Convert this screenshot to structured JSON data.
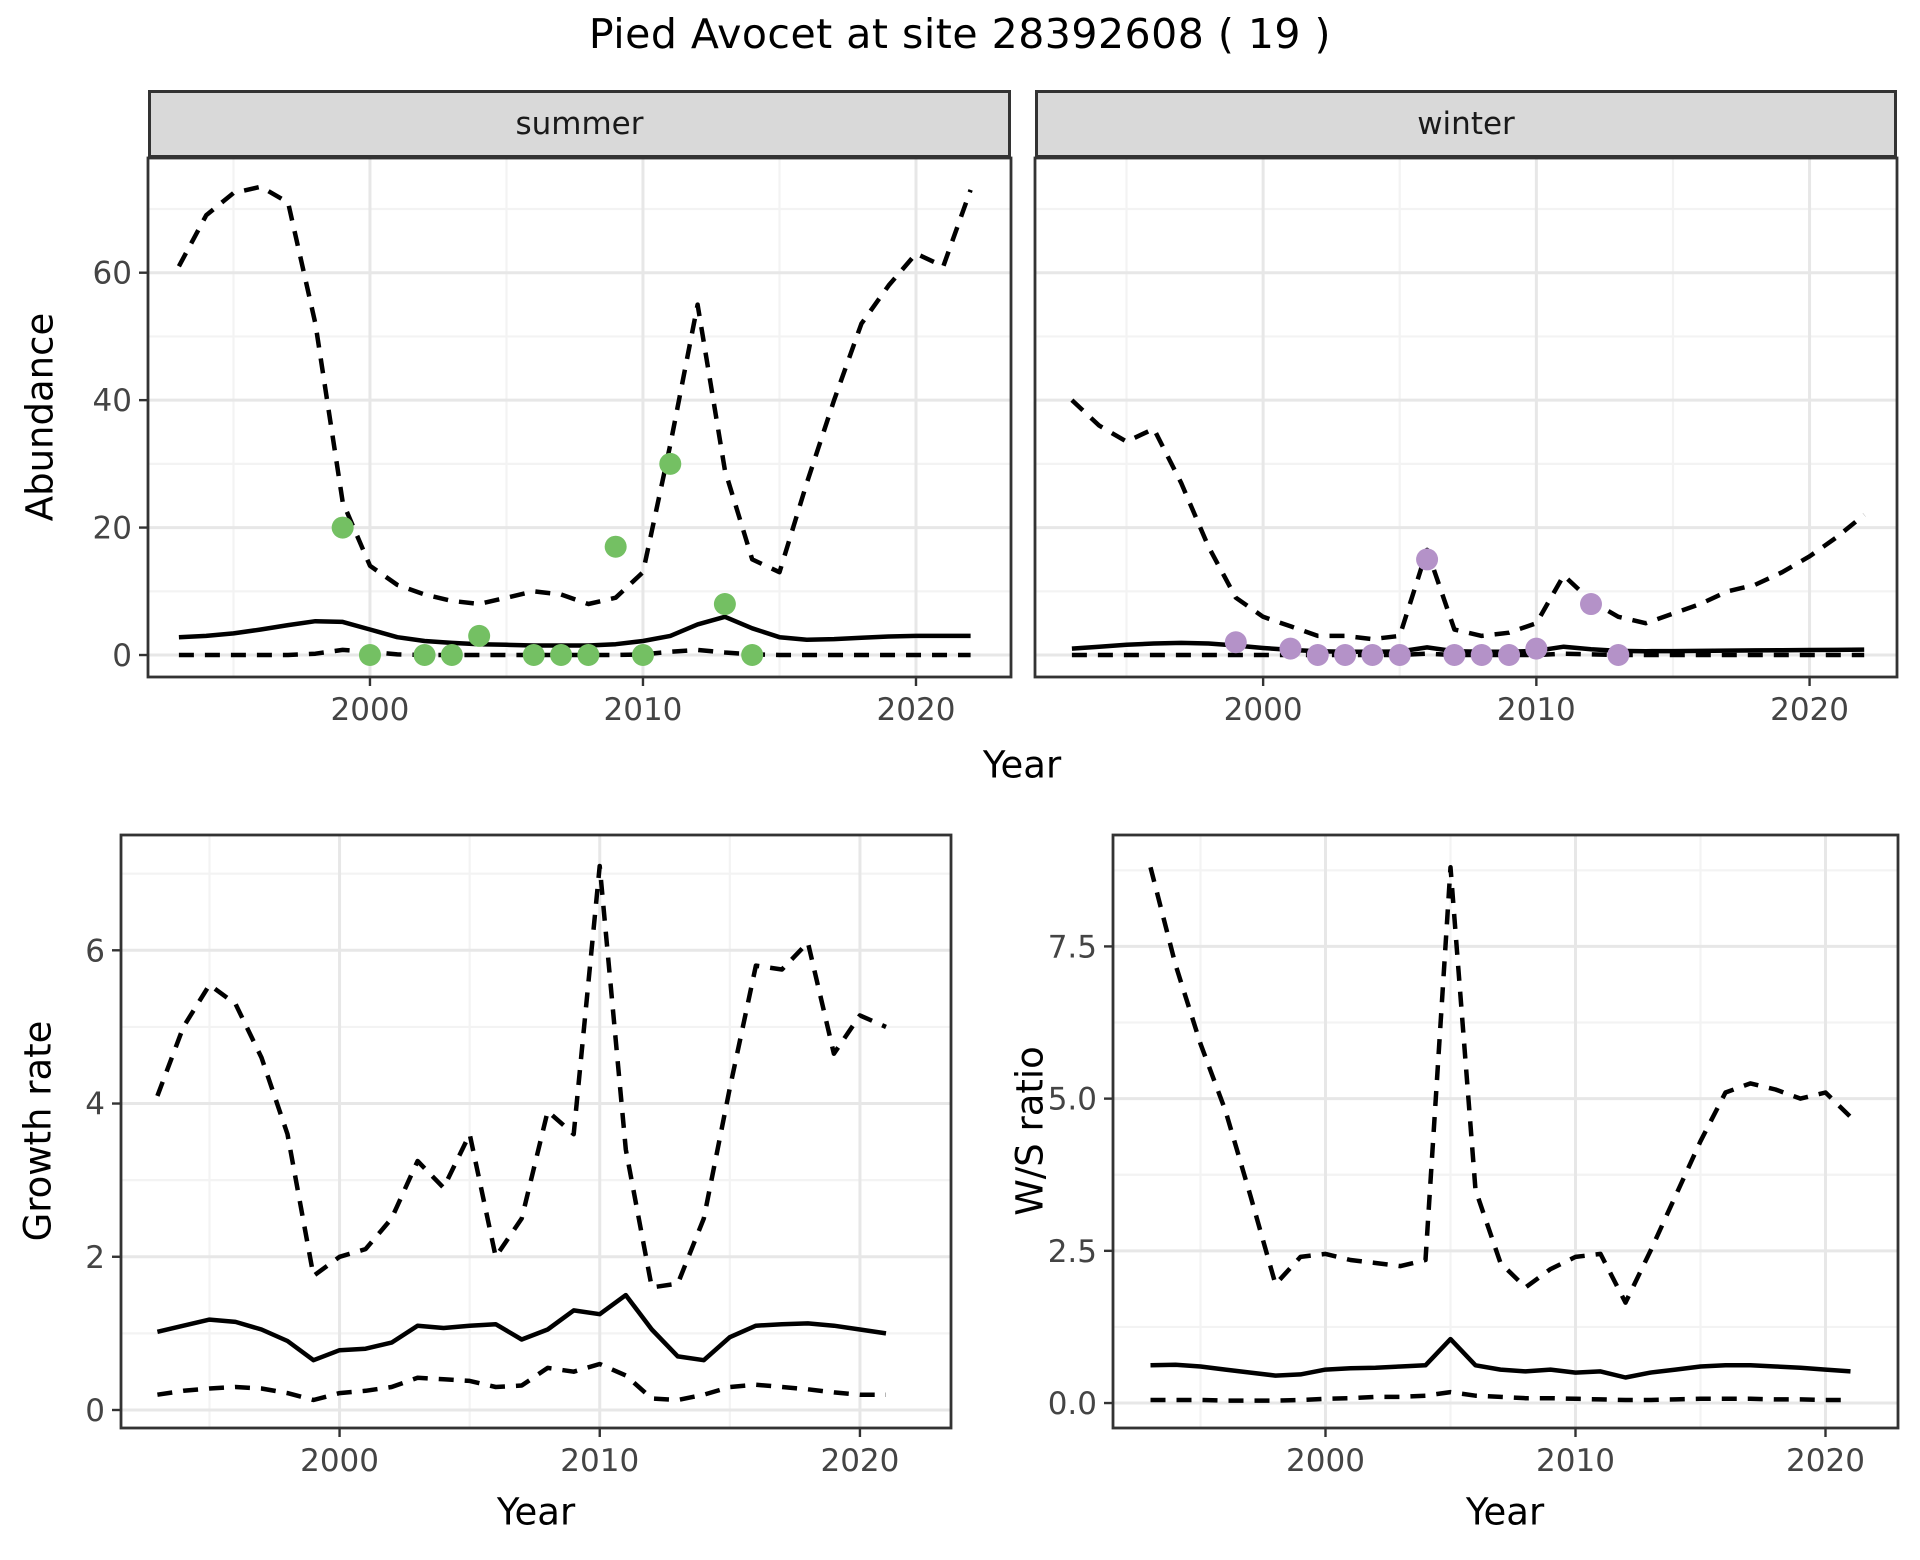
{
  "title": "Pied Avocet at site 28392608 ( 19 )",
  "axes": {
    "year": "Year",
    "abundance": "Abundance",
    "growth": "Growth rate",
    "ws": "W/S ratio"
  },
  "colors": {
    "fit_line": "#000000",
    "ci_line": "#000000",
    "summer_point": "#74c063",
    "winter_point": "#b492c8",
    "strip_bg": "#d9d9d9",
    "panel_border": "#333333",
    "grid_major": "#e7e7e7",
    "grid_minor": "#f3f3f3",
    "tick_text": "#444444",
    "tick_mark": "#333333"
  },
  "chart_data": [
    {
      "id": "abundance_summer",
      "type": "line",
      "facet_label": "summer",
      "title": "summer",
      "xlabel": "Year",
      "ylabel": "Abundance",
      "xlim": [
        1991.87,
        2023.48
      ],
      "ylim": [
        -3.45,
        78.0
      ],
      "x_ticks": [
        2000,
        2010,
        2020
      ],
      "x_tick_labels": [
        "2000",
        "2010",
        "2020"
      ],
      "x_minor": [
        1995,
        2005,
        2015
      ],
      "y_ticks": [
        0,
        20,
        40,
        60
      ],
      "y_tick_labels": [
        "0",
        "20",
        "40",
        "60"
      ],
      "y_minor": [
        10,
        30,
        50,
        70
      ],
      "show_y_axis": true,
      "x": [
        1993,
        1994,
        1995,
        1996,
        1997,
        1998,
        1999,
        2000,
        2001,
        2002,
        2003,
        2004,
        2005,
        2006,
        2007,
        2008,
        2009,
        2010,
        2011,
        2012,
        2013,
        2014,
        2015,
        2016,
        2017,
        2018,
        2019,
        2020,
        2021,
        2022
      ],
      "series": [
        {
          "name": "upper_ci",
          "style": "dashed",
          "values": [
            61,
            69,
            72.5,
            73.5,
            71,
            52,
            24,
            14,
            11,
            9.5,
            8.5,
            8,
            9,
            10,
            9.5,
            8,
            9,
            13,
            33,
            55,
            29,
            15,
            13,
            27,
            40,
            52,
            58,
            63,
            61,
            73
          ]
        },
        {
          "name": "fit",
          "style": "solid",
          "values": [
            2.8,
            3.0,
            3.4,
            4.0,
            4.7,
            5.3,
            5.2,
            4.0,
            2.8,
            2.2,
            1.9,
            1.7,
            1.6,
            1.5,
            1.5,
            1.5,
            1.7,
            2.2,
            3.0,
            4.8,
            6.0,
            4.2,
            2.8,
            2.4,
            2.5,
            2.7,
            2.9,
            3.0,
            3.0,
            3.0
          ]
        },
        {
          "name": "lower_ci",
          "style": "dashed",
          "values": [
            0,
            0,
            0,
            0,
            0,
            0.2,
            0.8,
            0.5,
            0.1,
            0,
            0,
            0,
            0,
            0,
            0,
            0,
            0,
            0.1,
            0.5,
            0.8,
            0.4,
            0.1,
            0,
            0,
            0,
            0,
            0,
            0,
            0,
            0
          ]
        }
      ],
      "points": {
        "name": "observed_counts",
        "color_key": "summer_point",
        "data": [
          [
            1999,
            20
          ],
          [
            2000,
            0
          ],
          [
            2002,
            0
          ],
          [
            2003,
            0
          ],
          [
            2004,
            3
          ],
          [
            2006,
            0
          ],
          [
            2007,
            0
          ],
          [
            2008,
            0
          ],
          [
            2009,
            17
          ],
          [
            2010,
            0
          ],
          [
            2011,
            30
          ],
          [
            2013,
            8
          ],
          [
            2014,
            0
          ]
        ]
      }
    },
    {
      "id": "abundance_winter",
      "type": "line",
      "facet_label": "winter",
      "title": "winter",
      "xlabel": "Year",
      "ylabel": "Abundance",
      "xlim": [
        1991.65,
        2023.2
      ],
      "ylim": [
        -3.45,
        78.0
      ],
      "x_ticks": [
        2000,
        2010,
        2020
      ],
      "x_tick_labels": [
        "2000",
        "2010",
        "2020"
      ],
      "x_minor": [
        1995,
        2005,
        2015
      ],
      "y_ticks": [
        0,
        20,
        40,
        60
      ],
      "y_tick_labels": [
        "0",
        "20",
        "40",
        "60"
      ],
      "y_minor": [
        10,
        30,
        50,
        70
      ],
      "show_y_axis": false,
      "x": [
        1993,
        1994,
        1995,
        1996,
        1997,
        1998,
        1999,
        2000,
        2001,
        2002,
        2003,
        2004,
        2005,
        2006,
        2007,
        2008,
        2009,
        2010,
        2011,
        2012,
        2013,
        2014,
        2015,
        2016,
        2017,
        2018,
        2019,
        2020,
        2021,
        2022
      ],
      "series": [
        {
          "name": "upper_ci",
          "style": "dashed",
          "values": [
            40,
            36,
            33.5,
            35.5,
            27,
            17,
            9,
            6,
            4.5,
            3,
            3,
            2.5,
            3,
            16.5,
            4,
            3,
            3.5,
            5,
            12.5,
            8.5,
            6,
            5,
            6.5,
            8,
            10,
            11,
            13,
            15.5,
            18.5,
            22
          ]
        },
        {
          "name": "fit",
          "style": "solid",
          "values": [
            1.0,
            1.3,
            1.6,
            1.8,
            1.9,
            1.8,
            1.5,
            1.1,
            0.8,
            0.6,
            0.5,
            0.5,
            0.55,
            1.2,
            0.6,
            0.5,
            0.5,
            0.65,
            1.3,
            0.9,
            0.65,
            0.6,
            0.62,
            0.65,
            0.7,
            0.72,
            0.75,
            0.78,
            0.8,
            0.85
          ]
        },
        {
          "name": "lower_ci",
          "style": "dashed",
          "values": [
            0,
            0,
            0,
            0,
            0,
            0,
            0,
            0,
            0,
            0,
            0,
            0,
            0,
            0.2,
            0,
            0,
            0,
            0,
            0.2,
            0.1,
            0,
            0,
            0,
            0,
            0,
            0,
            0,
            0,
            0,
            0
          ]
        }
      ],
      "points": {
        "name": "observed_counts",
        "color_key": "winter_point",
        "data": [
          [
            1999,
            2
          ],
          [
            2001,
            1
          ],
          [
            2002,
            0
          ],
          [
            2003,
            0
          ],
          [
            2004,
            0
          ],
          [
            2005,
            0
          ],
          [
            2006,
            15
          ],
          [
            2007,
            0
          ],
          [
            2008,
            0
          ],
          [
            2009,
            0
          ],
          [
            2010,
            1
          ],
          [
            2012,
            8
          ],
          [
            2013,
            0
          ]
        ]
      }
    },
    {
      "id": "growth_rate",
      "type": "line",
      "facet_label": "",
      "title": "",
      "xlabel": "Year",
      "ylabel": "Growth rate",
      "xlim": [
        1991.6,
        2023.5
      ],
      "ylim": [
        -0.235,
        7.505
      ],
      "x_ticks": [
        2000,
        2010,
        2020
      ],
      "x_tick_labels": [
        "2000",
        "2010",
        "2020"
      ],
      "x_minor": [
        1995,
        2005,
        2015
      ],
      "y_ticks": [
        0,
        2,
        4,
        6
      ],
      "y_tick_labels": [
        "0",
        "2",
        "4",
        "6"
      ],
      "y_minor": [
        1,
        3,
        5,
        7
      ],
      "show_y_axis": true,
      "x": [
        1993,
        1994,
        1995,
        1996,
        1997,
        1998,
        1999,
        2000,
        2001,
        2002,
        2003,
        2004,
        2005,
        2006,
        2007,
        2008,
        2009,
        2010,
        2011,
        2012,
        2013,
        2014,
        2015,
        2016,
        2017,
        2018,
        2019,
        2020,
        2021
      ],
      "series": [
        {
          "name": "upper_ci",
          "style": "dashed",
          "values": [
            4.1,
            5.0,
            5.55,
            5.3,
            4.6,
            3.6,
            1.75,
            2.0,
            2.1,
            2.5,
            3.25,
            2.9,
            3.6,
            2.0,
            2.5,
            3.9,
            3.6,
            7.1,
            3.4,
            1.6,
            1.65,
            2.5,
            4.2,
            5.8,
            5.75,
            6.1,
            4.65,
            5.15,
            5.0
          ]
        },
        {
          "name": "fit",
          "style": "solid",
          "values": [
            1.02,
            1.1,
            1.18,
            1.15,
            1.05,
            0.9,
            0.65,
            0.78,
            0.8,
            0.88,
            1.1,
            1.07,
            1.1,
            1.12,
            0.92,
            1.05,
            1.3,
            1.25,
            1.5,
            1.05,
            0.7,
            0.65,
            0.95,
            1.1,
            1.12,
            1.13,
            1.1,
            1.05,
            1.0
          ]
        },
        {
          "name": "lower_ci",
          "style": "dashed",
          "values": [
            0.2,
            0.25,
            0.28,
            0.3,
            0.28,
            0.22,
            0.13,
            0.22,
            0.25,
            0.3,
            0.42,
            0.4,
            0.38,
            0.3,
            0.32,
            0.55,
            0.5,
            0.6,
            0.45,
            0.15,
            0.13,
            0.2,
            0.3,
            0.33,
            0.3,
            0.27,
            0.23,
            0.2,
            0.2
          ]
        }
      ],
      "points": {
        "name": "none",
        "color_key": "summer_point",
        "data": []
      }
    },
    {
      "id": "ws_ratio",
      "type": "line",
      "facet_label": "",
      "title": "",
      "xlabel": "Year",
      "ylabel": "W/S ratio",
      "xlim": [
        1991.5,
        2022.9
      ],
      "ylim": [
        -0.41,
        9.33
      ],
      "x_ticks": [
        2000,
        2010,
        2020
      ],
      "x_tick_labels": [
        "2000",
        "2010",
        "2020"
      ],
      "x_minor": [
        1995,
        2005,
        2015
      ],
      "y_ticks": [
        0,
        2.5,
        5,
        7.5
      ],
      "y_tick_labels": [
        "0.0",
        "2.5",
        "5.0",
        "7.5"
      ],
      "y_minor": [
        1.25,
        3.75,
        6.25,
        8.75
      ],
      "show_y_axis": true,
      "x": [
        1993,
        1994,
        1995,
        1996,
        1997,
        1998,
        1999,
        2000,
        2001,
        2002,
        2003,
        2004,
        2005,
        2006,
        2007,
        2008,
        2009,
        2010,
        2011,
        2012,
        2013,
        2014,
        2015,
        2016,
        2017,
        2018,
        2019,
        2020,
        2021
      ],
      "series": [
        {
          "name": "upper_ci",
          "style": "dashed",
          "values": [
            8.8,
            7.2,
            5.9,
            4.8,
            3.4,
            1.95,
            2.4,
            2.45,
            2.35,
            2.3,
            2.25,
            2.35,
            8.8,
            3.5,
            2.3,
            1.9,
            2.2,
            2.4,
            2.45,
            1.65,
            2.5,
            3.4,
            4.3,
            5.1,
            5.25,
            5.15,
            5.0,
            5.1,
            4.7
          ]
        },
        {
          "name": "fit",
          "style": "solid",
          "values": [
            0.62,
            0.63,
            0.6,
            0.55,
            0.5,
            0.45,
            0.47,
            0.55,
            0.57,
            0.58,
            0.6,
            0.62,
            1.05,
            0.62,
            0.55,
            0.52,
            0.55,
            0.5,
            0.52,
            0.42,
            0.5,
            0.55,
            0.6,
            0.62,
            0.62,
            0.6,
            0.58,
            0.55,
            0.52
          ]
        },
        {
          "name": "lower_ci",
          "style": "dashed",
          "values": [
            0.05,
            0.05,
            0.05,
            0.04,
            0.04,
            0.04,
            0.05,
            0.07,
            0.08,
            0.1,
            0.1,
            0.12,
            0.18,
            0.12,
            0.1,
            0.08,
            0.08,
            0.07,
            0.06,
            0.05,
            0.05,
            0.06,
            0.07,
            0.07,
            0.07,
            0.06,
            0.06,
            0.05,
            0.05
          ]
        }
      ],
      "points": {
        "name": "none",
        "color_key": "winter_point",
        "data": []
      }
    }
  ]
}
